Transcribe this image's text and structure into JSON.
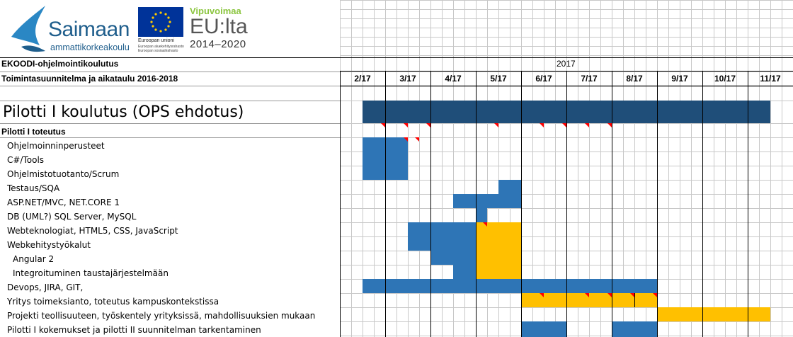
{
  "logos": {
    "saimaan_title": "Saimaan",
    "saimaan_sub": "ammattikorkeakoulu",
    "eu_name": "Euroopan unioni",
    "eu_fund1": "Euroopan aluekehitysrahasto",
    "eu_fund2": "Euroopan sosiaalirahasto",
    "vipu_1": "Vipuvoimaa",
    "vipu_2": "EU:lta",
    "vipu_3": "2014–2020"
  },
  "header": {
    "title": "EKOODI-ohjelmointikoulutus",
    "subtitle": "Toimintasuunnitelma ja aikataulu 2016-2018",
    "year": "2017",
    "months": [
      "2/17",
      "3/17",
      "4/17",
      "5/17",
      "6/17",
      "7/17",
      "8/17",
      "9/17",
      "10/17",
      "11/17"
    ]
  },
  "colors": {
    "dark_blue": "#1f4e79",
    "blue": "#2e75b6",
    "yellow": "#ffc000",
    "marker_red": "#ff0000",
    "grid": "#c8c8c8"
  },
  "section": "Pilotti I koulutus (OPS ehdotus)",
  "rows": [
    {
      "label": "Pilotti I toteutus",
      "bold": true
    },
    {
      "label": "Ohjelmoinninperusteet",
      "indent": 1
    },
    {
      "label": "C#/Tools",
      "indent": 1
    },
    {
      "label": "Ohjelmistotuotanto/Scrum",
      "indent": 1
    },
    {
      "label": "Testaus/SQA",
      "indent": 1
    },
    {
      "label": "ASP.NET/MVC, NET.CORE 1",
      "indent": 1
    },
    {
      "label": "DB (UML?) SQL Server, MySQL",
      "indent": 1
    },
    {
      "label": "Webteknologiat, HTML5, CSS, JavaScript",
      "indent": 1
    },
    {
      "label": "Webkehitystyökalut",
      "indent": 1
    },
    {
      "label": "Angular 2",
      "indent": 2
    },
    {
      "label": "Integroituminen taustajärjestelmään",
      "indent": 2
    },
    {
      "label": "Devops, JIRA, GIT,",
      "indent": 1
    },
    {
      "label": "Yritys toimeksianto, toteutus kampuskontekstissa",
      "indent": 1
    },
    {
      "label": "Projekti teollisuuteen, työskentely yrityksissä, mahdollisuuksien mukaan",
      "indent": 1
    },
    {
      "label": "Pilotti I kokemukset ja pilotti II suunnitelman tarkentaminen",
      "indent": 1
    }
  ]
}
